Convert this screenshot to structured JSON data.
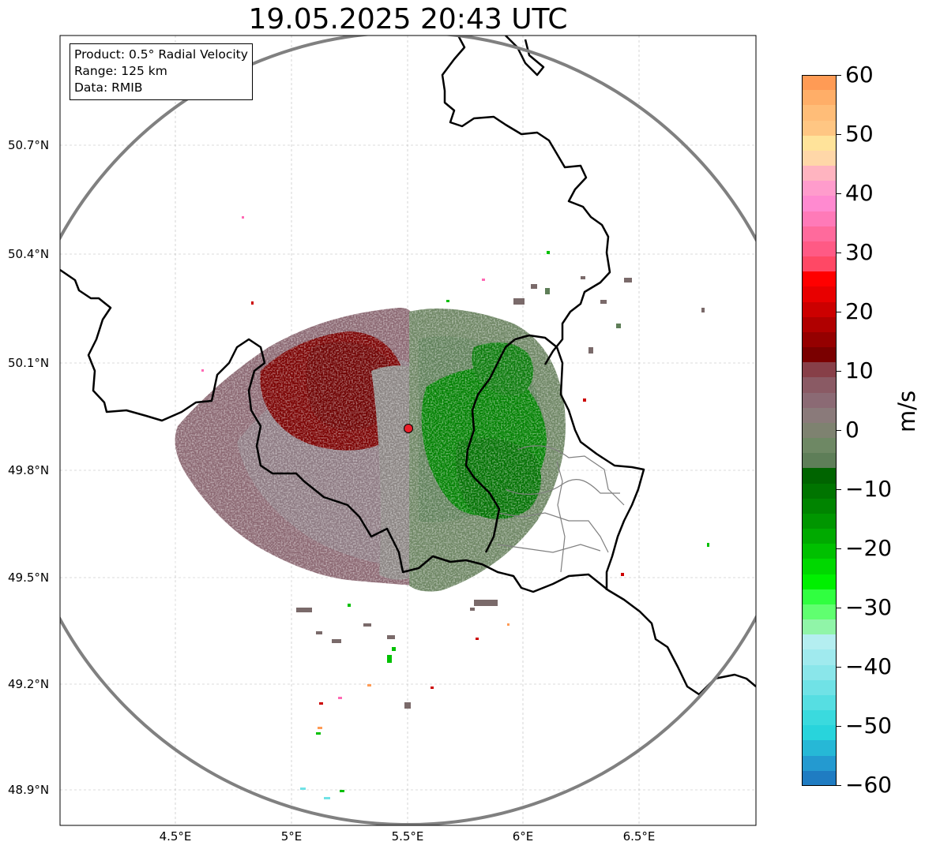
{
  "title": "19.05.2025 20:43 UTC",
  "info_box": {
    "product": "Product: 0.5° Radial Velocity",
    "range": "Range: 125 km",
    "data": "Data: RMIB"
  },
  "map": {
    "lon_ticks": [
      "4.5°E",
      "5°E",
      "5.5°E",
      "6°E",
      "6.5°E"
    ],
    "lat_ticks": [
      "50.7°N",
      "50.4°N",
      "50.1°N",
      "49.8°N",
      "49.5°N",
      "49.2°N",
      "48.9°N"
    ],
    "radar_site_color": "#e8202a",
    "range_ring_color": "#808080",
    "border_color": "#000000",
    "gridlines": true
  },
  "colorbar": {
    "unit": "m/s",
    "ticks": [
      "60",
      "50",
      "40",
      "30",
      "20",
      "10",
      "0",
      "−10",
      "−20",
      "−30",
      "−40",
      "−50",
      "−60"
    ],
    "range": [
      -60,
      60
    ],
    "colors_top_to_bottom": [
      "#ff9b55",
      "#ffae68",
      "#ffbd78",
      "#ffc683",
      "#ffe39a",
      "#ffd7a8",
      "#ffb4c0",
      "#ff9ccc",
      "#ff8ad0",
      "#ff7ab8",
      "#ff6a9c",
      "#ff5a85",
      "#ff4865",
      "#ff0000",
      "#e80000",
      "#cc0000",
      "#b00000",
      "#950000",
      "#7a0000",
      "#873f48",
      "#8a5a64",
      "#8b6a74",
      "#8a7a7a",
      "#7e8270",
      "#6e8864",
      "#5e7e58",
      "#006400",
      "#007400",
      "#008400",
      "#009600",
      "#00aa00",
      "#00c000",
      "#00d800",
      "#00f000",
      "#30ff40",
      "#60ff70",
      "#90f5a8",
      "#b4eef0",
      "#a0eaee",
      "#8ae6ea",
      "#70e2e6",
      "#56dee2",
      "#3adade",
      "#28d4dc",
      "#26b8d6",
      "#249ad0",
      "#1f7cc2"
    ]
  }
}
